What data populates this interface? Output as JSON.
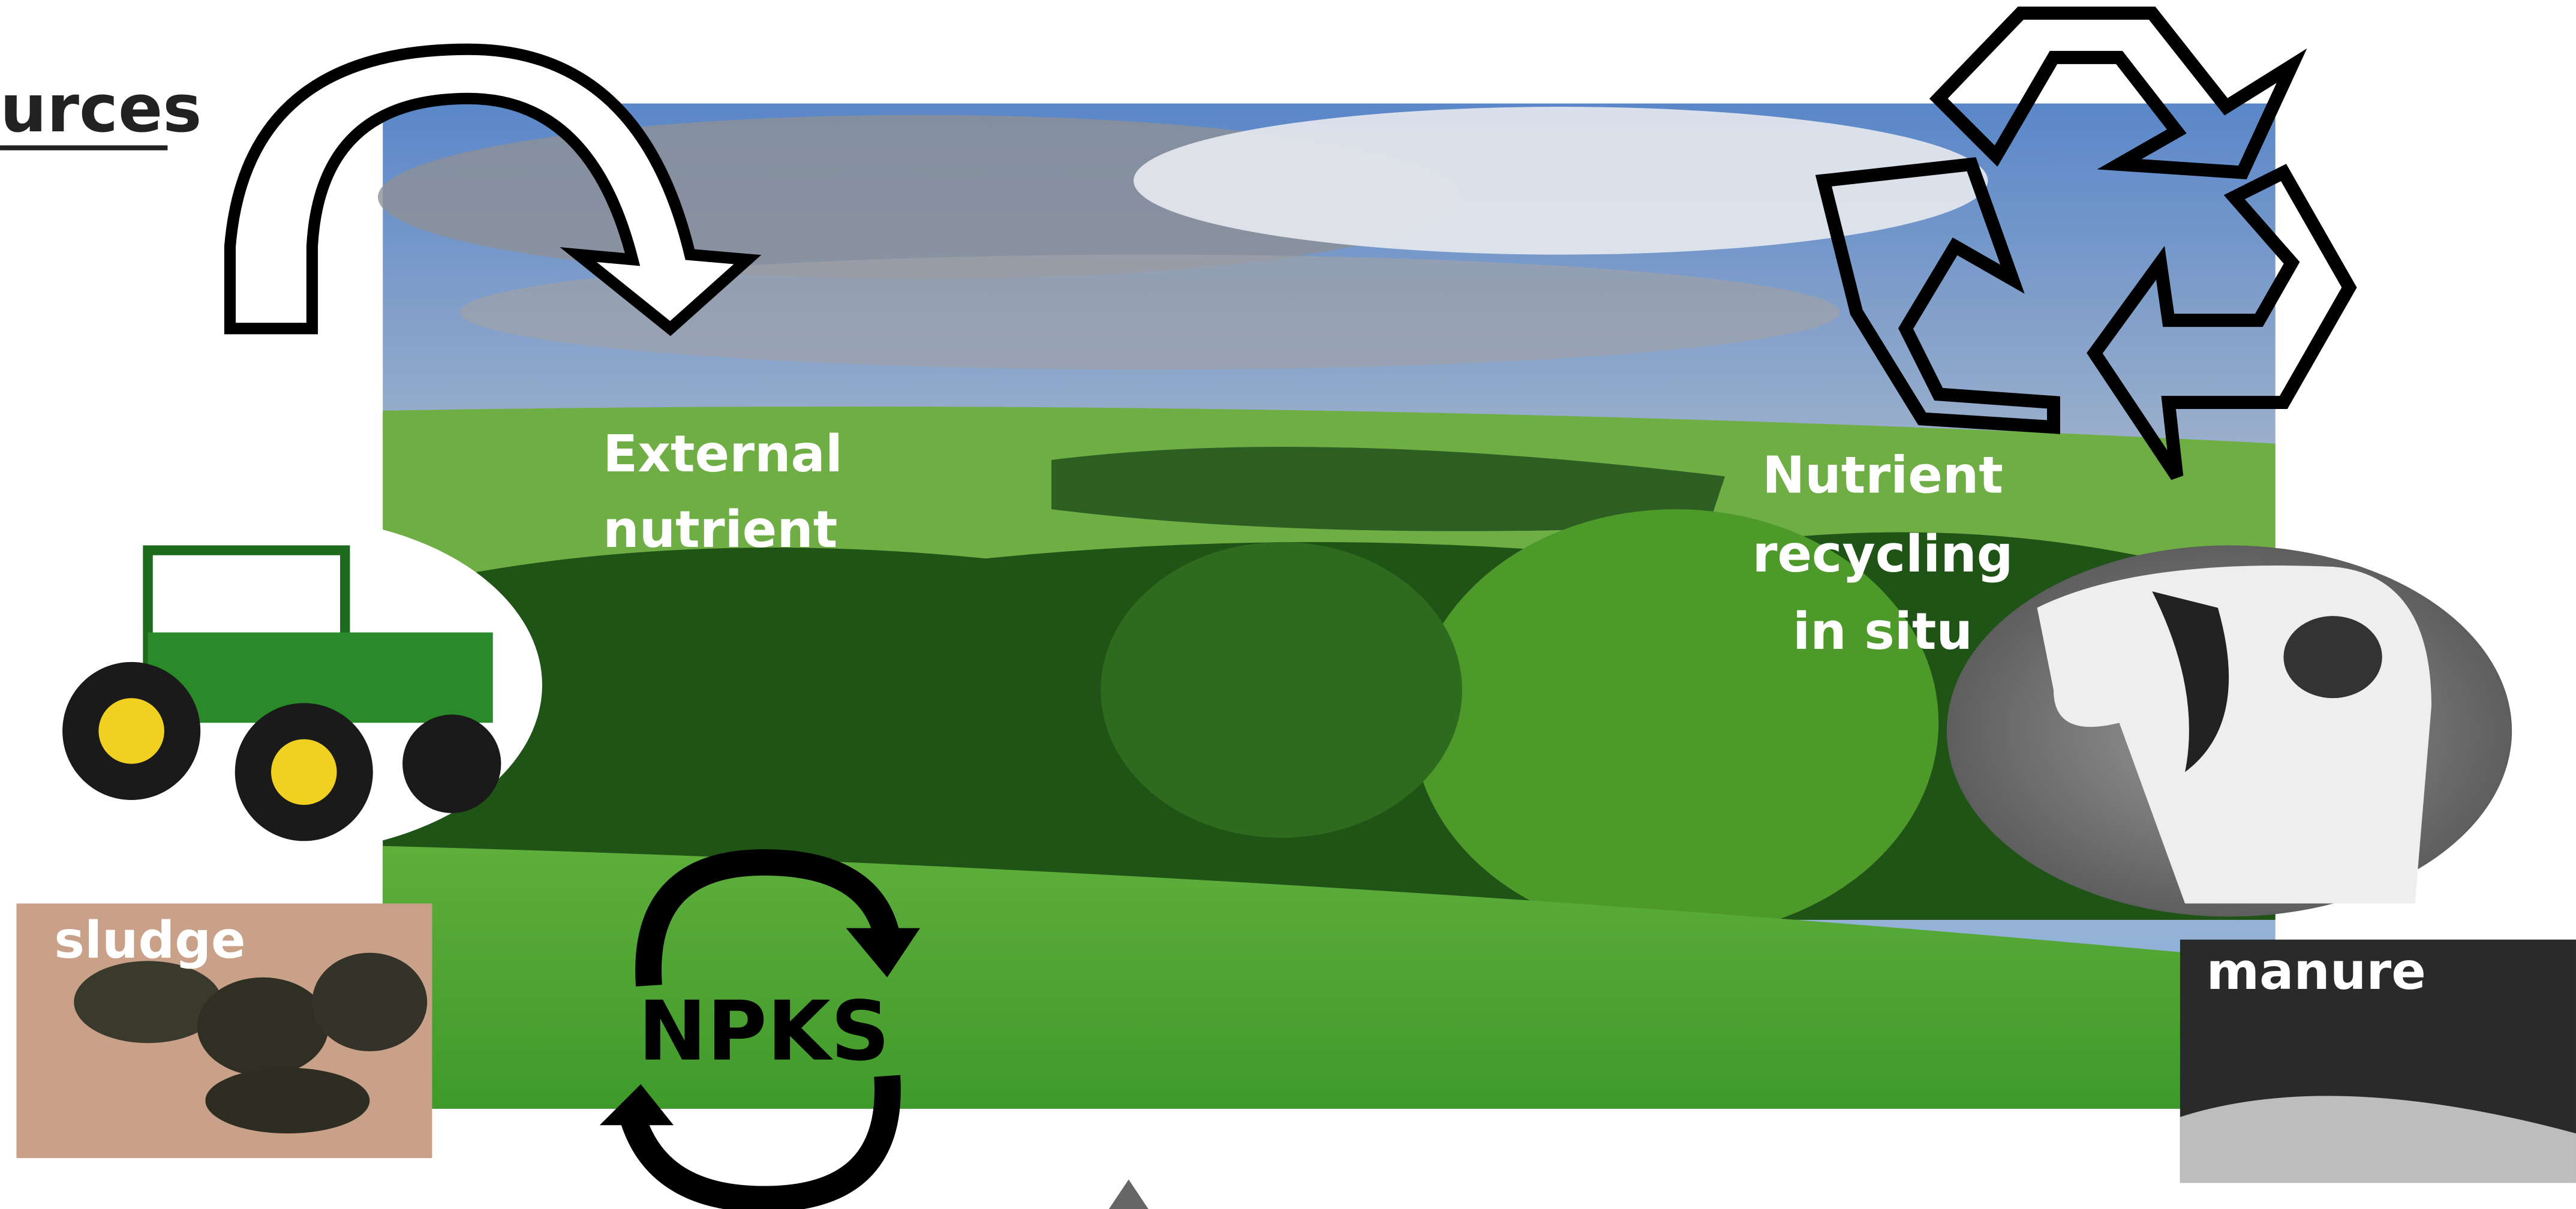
{
  "heading": "urces",
  "external_label": [
    "External",
    "nutrient"
  ],
  "recycling_label": [
    "Nutrient",
    "recycling",
    "in situ"
  ],
  "sludge_label": "sludge",
  "npks_label": "NPKS",
  "manure_label": "manure"
}
